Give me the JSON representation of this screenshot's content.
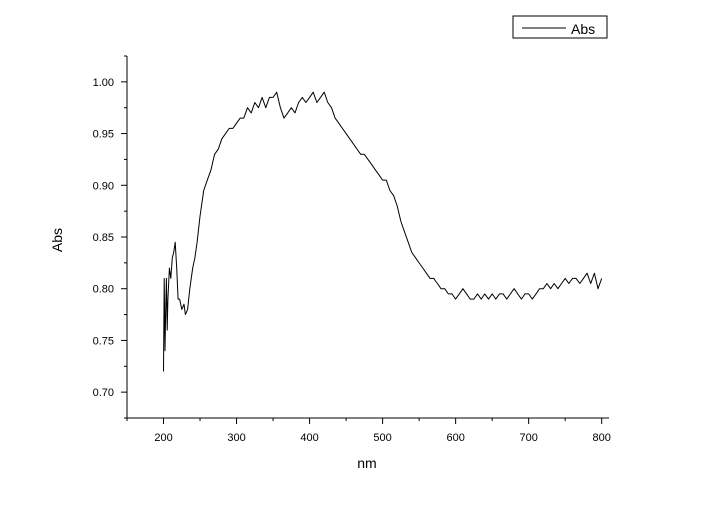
{
  "chart_data": {
    "type": "line",
    "title": "",
    "xlabel": "nm",
    "ylabel": "Abs",
    "xlim": [
      150,
      810
    ],
    "ylim": [
      0.675,
      1.025
    ],
    "xticks": [
      200,
      300,
      400,
      500,
      600,
      700,
      800
    ],
    "xtick_labels": [
      "200",
      "300",
      "400",
      "500",
      "600",
      "700",
      "800"
    ],
    "yticks": [
      0.7,
      0.75,
      0.8,
      0.85,
      0.9,
      0.95,
      1.0
    ],
    "ytick_labels": [
      "0.70",
      "0.75",
      "0.80",
      "0.85",
      "0.90",
      "0.95",
      "1.00"
    ],
    "grid": false,
    "legend": {
      "position": "top-right",
      "entries": [
        "Abs"
      ]
    },
    "series": [
      {
        "name": "Abs",
        "color": "#000000",
        "x": [
          200,
          201,
          202,
          203,
          204,
          205,
          206,
          208,
          210,
          212,
          214,
          216,
          218,
          220,
          222,
          225,
          228,
          230,
          233,
          236,
          240,
          243,
          246,
          250,
          255,
          260,
          265,
          270,
          275,
          280,
          285,
          290,
          295,
          300,
          305,
          310,
          315,
          320,
          325,
          330,
          335,
          340,
          345,
          350,
          355,
          360,
          365,
          370,
          375,
          380,
          385,
          390,
          395,
          400,
          405,
          410,
          415,
          420,
          425,
          430,
          435,
          440,
          445,
          450,
          455,
          460,
          465,
          470,
          475,
          480,
          485,
          490,
          495,
          500,
          505,
          510,
          515,
          520,
          525,
          530,
          535,
          540,
          545,
          550,
          555,
          560,
          565,
          570,
          575,
          580,
          585,
          590,
          595,
          600,
          605,
          610,
          615,
          620,
          625,
          630,
          635,
          640,
          645,
          650,
          655,
          660,
          665,
          670,
          675,
          680,
          685,
          690,
          695,
          700,
          705,
          710,
          715,
          720,
          725,
          730,
          735,
          740,
          745,
          750,
          755,
          760,
          765,
          770,
          775,
          780,
          785,
          790,
          795,
          800
        ],
        "y": [
          0.72,
          0.81,
          0.74,
          0.78,
          0.81,
          0.76,
          0.79,
          0.82,
          0.81,
          0.83,
          0.835,
          0.845,
          0.82,
          0.79,
          0.79,
          0.78,
          0.785,
          0.775,
          0.78,
          0.8,
          0.82,
          0.83,
          0.845,
          0.87,
          0.895,
          0.905,
          0.915,
          0.93,
          0.935,
          0.945,
          0.95,
          0.955,
          0.955,
          0.96,
          0.965,
          0.965,
          0.975,
          0.97,
          0.98,
          0.975,
          0.985,
          0.975,
          0.985,
          0.985,
          0.99,
          0.975,
          0.965,
          0.97,
          0.975,
          0.97,
          0.98,
          0.985,
          0.98,
          0.985,
          0.99,
          0.98,
          0.985,
          0.99,
          0.98,
          0.975,
          0.965,
          0.96,
          0.955,
          0.95,
          0.945,
          0.94,
          0.935,
          0.93,
          0.93,
          0.925,
          0.92,
          0.915,
          0.91,
          0.905,
          0.905,
          0.895,
          0.89,
          0.88,
          0.865,
          0.855,
          0.845,
          0.835,
          0.83,
          0.825,
          0.82,
          0.815,
          0.81,
          0.81,
          0.805,
          0.8,
          0.8,
          0.795,
          0.795,
          0.79,
          0.795,
          0.8,
          0.795,
          0.79,
          0.79,
          0.795,
          0.79,
          0.795,
          0.79,
          0.795,
          0.79,
          0.795,
          0.795,
          0.79,
          0.795,
          0.8,
          0.795,
          0.79,
          0.795,
          0.795,
          0.79,
          0.795,
          0.8,
          0.8,
          0.805,
          0.8,
          0.805,
          0.8,
          0.805,
          0.81,
          0.805,
          0.81,
          0.81,
          0.805,
          0.81,
          0.815,
          0.805,
          0.815,
          0.8,
          0.81
        ]
      }
    ]
  }
}
